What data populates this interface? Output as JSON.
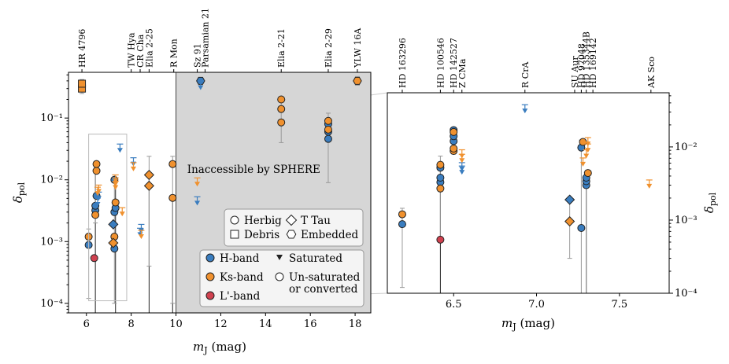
{
  "chart_data": [
    {
      "type": "scatter",
      "xlabel": "m_J (mag)",
      "ylabel": "δ_pol",
      "xlim": [
        5.2,
        18.7
      ],
      "ylim": [
        7e-05,
        0.55
      ],
      "x_ticks": [
        6,
        8,
        10,
        12,
        14,
        16,
        18
      ],
      "y_ticks": [
        {
          "v": 0.0001,
          "label": "10⁻⁴"
        },
        {
          "v": 0.001,
          "label": "10⁻³"
        },
        {
          "v": 0.01,
          "label": "10⁻²"
        },
        {
          "v": 0.1,
          "label": "10⁻¹"
        }
      ],
      "shaded_region": {
        "x_from": 10,
        "x_to": 18.7,
        "label": "Inaccessible by SPHERE",
        "label_x": 10.5,
        "label_y": 0.013
      },
      "zoom_box": {
        "x": [
          6.1,
          7.8
        ],
        "y": [
          0.00011,
          0.055
        ]
      },
      "top_labels": [
        {
          "x": 5.8,
          "text": "HR 4796"
        },
        {
          "x": 8.0,
          "text": "TW Hya"
        },
        {
          "x": 8.4,
          "text": "CR Cha"
        },
        {
          "x": 8.8,
          "text": "Elia 2-25"
        },
        {
          "x": 9.9,
          "text": "R Mon"
        },
        {
          "x": 10.95,
          "text": "Sz 91"
        },
        {
          "x": 11.3,
          "text": "Parsamian 21"
        },
        {
          "x": 14.7,
          "text": "Elia 2-21"
        },
        {
          "x": 16.8,
          "text": "Elia 2-29"
        },
        {
          "x": 18.1,
          "text": "YLW 16A"
        }
      ],
      "vlines": [
        {
          "x": 6.4,
          "y": [
            7e-05,
            0.018
          ]
        },
        {
          "x": 7.3,
          "y": [
            7e-05,
            0.011
          ]
        },
        {
          "x": 8.8,
          "y": [
            7e-05,
            0.012
          ]
        },
        {
          "x": 9.85,
          "y": [
            7e-05,
            0.0052
          ]
        }
      ],
      "errorbars": [
        {
          "x": 5.8,
          "y": 0.33,
          "lo": 0.25,
          "hi": 0.42
        },
        {
          "x": 6.1,
          "y": 0.0012,
          "lo": 0.00012,
          "hi": 0.0016
        },
        {
          "x": 6.4,
          "y": 0.005,
          "lo": 0.002,
          "hi": 0.018
        },
        {
          "x": 7.25,
          "y": 0.005,
          "lo": 0.0001,
          "hi": 0.012
        },
        {
          "x": 8.8,
          "y": 0.01,
          "lo": 0.0004,
          "hi": 0.024
        },
        {
          "x": 9.85,
          "y": 0.018,
          "lo": 0.0001,
          "hi": 0.024
        },
        {
          "x": 14.7,
          "y": 0.12,
          "lo": 0.04,
          "hi": 0.22
        },
        {
          "x": 16.8,
          "y": 0.07,
          "lo": 0.009,
          "hi": 0.12
        },
        {
          "x": 18.1,
          "y": 0.4,
          "lo": 0.34,
          "hi": 0.47
        }
      ],
      "series": [
        {
          "name": "H-band",
          "marker": "circle",
          "color": "#3a7dbf",
          "points": [
            [
              6.1,
              0.00088
            ],
            [
              6.4,
              0.0032
            ],
            [
              6.4,
              0.0038
            ],
            [
              6.45,
              0.0055
            ],
            [
              7.25,
              0.00077
            ],
            [
              7.25,
              0.003
            ],
            [
              7.3,
              0.0035
            ],
            [
              7.25,
              0.01
            ],
            [
              16.8,
              0.046
            ],
            [
              16.8,
              0.06
            ],
            [
              16.8,
              0.08
            ]
          ]
        },
        {
          "name": "Ks-band",
          "marker": "circle",
          "color": "#f0912e",
          "points": [
            [
              6.1,
              0.0012
            ],
            [
              6.4,
              0.0027
            ],
            [
              6.45,
              0.014
            ],
            [
              6.45,
              0.018
            ],
            [
              7.25,
              0.0012
            ],
            [
              7.3,
              0.0043
            ],
            [
              9.85,
              0.0051
            ],
            [
              9.85,
              0.018
            ],
            [
              14.7,
              0.085
            ],
            [
              14.7,
              0.14
            ],
            [
              14.7,
              0.2
            ],
            [
              16.8,
              0.065
            ],
            [
              16.8,
              0.09
            ]
          ]
        },
        {
          "name": "L'-band",
          "marker": "circle",
          "color": "#d0414f",
          "points": [
            [
              6.35,
              0.00054
            ]
          ]
        },
        {
          "name": "H-band",
          "marker": "diamond",
          "color": "#3a7dbf",
          "points": [
            [
              7.2,
              0.0019
            ]
          ]
        },
        {
          "name": "Ks-band",
          "marker": "diamond",
          "color": "#f0912e",
          "points": [
            [
              7.2,
              0.00095
            ],
            [
              8.8,
              0.008
            ],
            [
              8.8,
              0.012
            ]
          ]
        },
        {
          "name": "Ks-band",
          "marker": "square",
          "color": "#f0912e",
          "points": [
            [
              5.8,
              0.3
            ],
            [
              5.8,
              0.36
            ]
          ]
        },
        {
          "name": "H-band",
          "marker": "hexagon",
          "color": "#3a7dbf",
          "points": [
            [
              11.1,
              0.4
            ]
          ]
        },
        {
          "name": "Ks-band",
          "marker": "hexagon",
          "color": "#f0912e",
          "points": [
            [
              18.1,
              0.4
            ]
          ]
        },
        {
          "name": "H-band upper limit",
          "marker": "triangle-down",
          "color": "#3a7dbf",
          "points": [
            [
              6.5,
              0.004
            ],
            [
              6.55,
              0.005
            ],
            [
              7.5,
              0.03
            ],
            [
              8.1,
              0.018
            ],
            [
              8.4,
              0.0013
            ],
            [
              8.45,
              0.0015
            ],
            [
              10.95,
              0.0042
            ],
            [
              11.1,
              0.31
            ]
          ]
        },
        {
          "name": "Ks-band upper limit",
          "marker": "triangle-down",
          "color": "#f0912e",
          "points": [
            [
              6.5,
              0.006
            ],
            [
              6.55,
              0.0065
            ],
            [
              7.3,
              0.0075
            ],
            [
              7.3,
              0.0095
            ],
            [
              7.3,
              0.0085
            ],
            [
              7.6,
              0.0028
            ],
            [
              8.1,
              0.015
            ],
            [
              8.45,
              0.0012
            ],
            [
              10.95,
              0.0085
            ]
          ]
        }
      ],
      "legend_markers": {
        "entries": [
          {
            "marker": "circle",
            "label": "Herbig"
          },
          {
            "marker": "diamond",
            "label": "T Tau"
          },
          {
            "marker": "square",
            "label": "Debris"
          },
          {
            "marker": "hexagon",
            "label": "Embedded"
          }
        ]
      },
      "legend_bands": {
        "entries": [
          {
            "marker": "circle",
            "color": "#3a7dbf",
            "label": "H-band"
          },
          {
            "marker": "circle",
            "color": "#f0912e",
            "label": "Ks-band"
          },
          {
            "marker": "circle",
            "color": "#d0414f",
            "label": "L'-band"
          },
          {
            "marker": "triangle-down",
            "label": "Saturated"
          },
          {
            "marker": "circle-open",
            "label": "Un-saturated",
            "label2": "or converted"
          }
        ]
      }
    },
    {
      "type": "scatter",
      "xlabel": "m_J (mag)",
      "ylabel": "δ_pol",
      "xlim": [
        6.1,
        7.8
      ],
      "ylim": [
        0.0001,
        0.055
      ],
      "x_ticks": [
        6.5,
        7.0,
        7.5
      ],
      "x_tick_labels": [
        "6.5",
        "7.0",
        "7.5"
      ],
      "y_ticks": [
        {
          "v": 0.0001,
          "label": "10⁻⁴"
        },
        {
          "v": 0.001,
          "label": "10⁻³"
        },
        {
          "v": 0.01,
          "label": "10⁻²"
        }
      ],
      "top_labels": [
        {
          "x": 6.19,
          "text": "HD 163296"
        },
        {
          "x": 6.42,
          "text": "HD 100546"
        },
        {
          "x": 6.5,
          "text": "HD 142527"
        },
        {
          "x": 6.55,
          "text": "Z CMa"
        },
        {
          "x": 6.93,
          "text": "R CrA"
        },
        {
          "x": 7.23,
          "text": "SU Aur"
        },
        {
          "x": 7.27,
          "text": "HD 97048"
        },
        {
          "x": 7.3,
          "text": "HD 135344B"
        },
        {
          "x": 7.34,
          "text": "HD 169142"
        },
        {
          "x": 7.69,
          "text": "AK Sco"
        }
      ],
      "vlines": [
        {
          "x": 6.42,
          "y": [
            0.0001,
            0.0055
          ]
        },
        {
          "x": 7.3,
          "y": [
            0.0001,
            0.004
          ]
        }
      ],
      "errorbars": [
        {
          "x": 6.19,
          "y": 0.00088,
          "lo": 0.00012,
          "hi": 0.00145
        },
        {
          "x": 6.42,
          "y": 0.004,
          "lo": 0.00055,
          "hi": 0.0075
        },
        {
          "x": 6.5,
          "y": 0.012,
          "lo": 0.008,
          "hi": 0.018
        },
        {
          "x": 7.2,
          "y": 0.0012,
          "lo": 0.0003,
          "hi": 0.002
        },
        {
          "x": 7.27,
          "y": 0.0011,
          "lo": 0.0001,
          "hi": 0.0124
        },
        {
          "x": 7.3,
          "y": 0.002,
          "lo": 0.0001,
          "hi": 0.0045
        }
      ],
      "series": [
        {
          "name": "H-band",
          "marker": "circle",
          "color": "#3a7dbf",
          "points": [
            [
              6.19,
              0.00088
            ],
            [
              6.42,
              0.0033
            ],
            [
              6.42,
              0.0038
            ],
            [
              6.42,
              0.0052
            ],
            [
              6.5,
              0.012
            ],
            [
              6.5,
              0.014
            ],
            [
              6.5,
              0.017
            ],
            [
              7.27,
              0.00078
            ],
            [
              7.27,
              0.0098
            ],
            [
              7.3,
              0.003
            ],
            [
              7.3,
              0.0034
            ],
            [
              7.3,
              0.0038
            ]
          ]
        },
        {
          "name": "Ks-band",
          "marker": "circle",
          "color": "#f0912e",
          "points": [
            [
              6.19,
              0.0012
            ],
            [
              6.42,
              0.0027
            ],
            [
              6.42,
              0.0057
            ],
            [
              6.5,
              0.0088
            ],
            [
              6.5,
              0.0095
            ],
            [
              6.5,
              0.016
            ],
            [
              7.28,
              0.0117
            ],
            [
              7.31,
              0.0044
            ]
          ]
        },
        {
          "name": "L'-band",
          "marker": "circle",
          "color": "#d0414f",
          "points": [
            [
              6.42,
              0.00054
            ]
          ]
        },
        {
          "name": "H-band",
          "marker": "diamond",
          "color": "#3a7dbf",
          "points": [
            [
              7.2,
              0.0019
            ]
          ]
        },
        {
          "name": "Ks-band",
          "marker": "diamond",
          "color": "#f0912e",
          "points": [
            [
              7.2,
              0.00096
            ]
          ]
        },
        {
          "name": "H-band upper limit",
          "marker": "triangle-down",
          "color": "#3a7dbf",
          "points": [
            [
              6.55,
              0.0045
            ],
            [
              6.55,
              0.005
            ],
            [
              6.93,
              0.031
            ]
          ]
        },
        {
          "name": "Ks-band upper limit",
          "marker": "triangle-down",
          "color": "#f0912e",
          "points": [
            [
              6.55,
              0.0065
            ],
            [
              6.55,
              0.0075
            ],
            [
              7.28,
              0.0058
            ],
            [
              7.3,
              0.0075
            ],
            [
              7.31,
              0.011
            ],
            [
              7.31,
              0.009
            ],
            [
              7.68,
              0.0029
            ]
          ]
        }
      ]
    }
  ]
}
